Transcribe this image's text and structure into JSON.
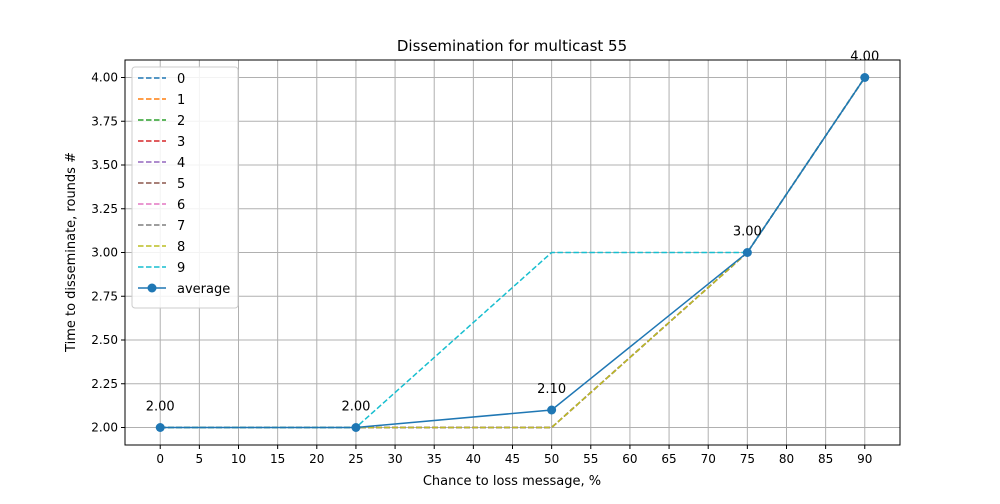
{
  "chart_data": {
    "type": "line",
    "title": "Dissemination for multicast 55",
    "xlabel": "Chance to loss message, %",
    "ylabel": "Time to disseminate, rounds #",
    "x_ticks": [
      0,
      5,
      10,
      15,
      20,
      25,
      30,
      35,
      40,
      45,
      50,
      55,
      60,
      65,
      70,
      75,
      80,
      85,
      90
    ],
    "y_ticks": [
      2.0,
      2.25,
      2.5,
      2.75,
      3.0,
      3.25,
      3.5,
      3.75,
      4.0
    ],
    "y_tick_labels": [
      "2.00",
      "2.25",
      "2.50",
      "2.75",
      "3.00",
      "3.25",
      "3.50",
      "3.75",
      "4.00"
    ],
    "xlim": [
      -4.5,
      94.5
    ],
    "ylim": [
      1.9,
      4.1
    ],
    "grid": true,
    "legend_placement": "upper-left",
    "x": [
      0,
      25,
      50,
      75,
      90
    ],
    "series": [
      {
        "name": "0",
        "values": [
          2,
          2,
          2,
          3,
          4
        ],
        "color": "#1f77b4",
        "style": "dashed"
      },
      {
        "name": "1",
        "values": [
          2,
          2,
          2,
          3,
          4
        ],
        "color": "#ff7f0e",
        "style": "dashed"
      },
      {
        "name": "2",
        "values": [
          2,
          2,
          2,
          3,
          4
        ],
        "color": "#2ca02c",
        "style": "dashed"
      },
      {
        "name": "3",
        "values": [
          2,
          2,
          2,
          3,
          4
        ],
        "color": "#d62728",
        "style": "dashed"
      },
      {
        "name": "4",
        "values": [
          2,
          2,
          2,
          3,
          4
        ],
        "color": "#9467bd",
        "style": "dashed"
      },
      {
        "name": "5",
        "values": [
          2,
          2,
          2,
          3,
          4
        ],
        "color": "#8c564b",
        "style": "dashed"
      },
      {
        "name": "6",
        "values": [
          2,
          2,
          2,
          3,
          4
        ],
        "color": "#e377c2",
        "style": "dashed"
      },
      {
        "name": "7",
        "values": [
          2,
          2,
          2,
          3,
          4
        ],
        "color": "#7f7f7f",
        "style": "dashed"
      },
      {
        "name": "8",
        "values": [
          2,
          2,
          2,
          3,
          4
        ],
        "color": "#bcbd22",
        "style": "dashed"
      },
      {
        "name": "9",
        "values": [
          2,
          2,
          3,
          3,
          4
        ],
        "color": "#17becf",
        "style": "dashed"
      },
      {
        "name": "average",
        "values": [
          2.0,
          2.0,
          2.1,
          3.0,
          4.0
        ],
        "color": "#1f77b4",
        "style": "solid-marker"
      }
    ],
    "data_labels": [
      "2.00",
      "2.00",
      "2.10",
      "3.00",
      "4.00"
    ]
  }
}
